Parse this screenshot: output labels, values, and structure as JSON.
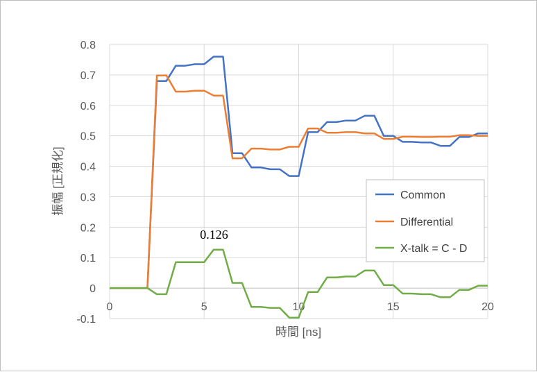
{
  "chart_data": {
    "type": "line",
    "xlabel": "時間 [ns]",
    "ylabel": "振幅 [正規化]",
    "xlim": [
      0,
      20
    ],
    "ylim": [
      -0.1,
      0.8
    ],
    "x_ticks": [
      "0",
      "5",
      "10",
      "15",
      "20"
    ],
    "y_ticks": [
      "-0.1",
      "0",
      "0.1",
      "0.2",
      "0.3",
      "0.4",
      "0.5",
      "0.6",
      "0.7",
      "0.8"
    ],
    "grid": true,
    "legend_position": "right",
    "annotations": [
      {
        "text": "0.126",
        "x": 6.0,
        "y": 0.126
      }
    ],
    "series": [
      {
        "name": "Common",
        "color": "#4472c4",
        "points": [
          [
            0,
            0
          ],
          [
            2,
            0
          ],
          [
            2.5,
            0.68
          ],
          [
            3,
            0.68
          ],
          [
            3.5,
            0.73
          ],
          [
            4,
            0.73
          ],
          [
            4.5,
            0.735
          ],
          [
            5,
            0.735
          ],
          [
            5.5,
            0.76
          ],
          [
            6,
            0.76
          ],
          [
            6.5,
            0.443
          ],
          [
            7,
            0.443
          ],
          [
            7.5,
            0.396
          ],
          [
            8,
            0.396
          ],
          [
            8.5,
            0.39
          ],
          [
            9,
            0.39
          ],
          [
            9.5,
            0.368
          ],
          [
            10,
            0.368
          ],
          [
            10.5,
            0.512
          ],
          [
            11,
            0.512
          ],
          [
            11.5,
            0.545
          ],
          [
            12,
            0.545
          ],
          [
            12.5,
            0.55
          ],
          [
            13,
            0.55
          ],
          [
            13.5,
            0.566
          ],
          [
            14,
            0.566
          ],
          [
            14.5,
            0.5
          ],
          [
            15,
            0.5
          ],
          [
            15.5,
            0.48
          ],
          [
            16,
            0.48
          ],
          [
            16.5,
            0.478
          ],
          [
            17,
            0.478
          ],
          [
            17.5,
            0.467
          ],
          [
            18,
            0.467
          ],
          [
            18.5,
            0.496
          ],
          [
            19,
            0.496
          ],
          [
            19.5,
            0.508
          ],
          [
            20,
            0.508
          ]
        ]
      },
      {
        "name": "Differential",
        "color": "#ed7d31",
        "points": [
          [
            0,
            0
          ],
          [
            2,
            0
          ],
          [
            2.5,
            0.698
          ],
          [
            3,
            0.698
          ],
          [
            3.5,
            0.645
          ],
          [
            4,
            0.645
          ],
          [
            4.5,
            0.648
          ],
          [
            5,
            0.648
          ],
          [
            5.5,
            0.632
          ],
          [
            6,
            0.632
          ],
          [
            6.5,
            0.426
          ],
          [
            7,
            0.426
          ],
          [
            7.5,
            0.458
          ],
          [
            8,
            0.458
          ],
          [
            8.5,
            0.455
          ],
          [
            9,
            0.455
          ],
          [
            9.5,
            0.464
          ],
          [
            10,
            0.464
          ],
          [
            10.5,
            0.524
          ],
          [
            11,
            0.524
          ],
          [
            11.5,
            0.51
          ],
          [
            12,
            0.51
          ],
          [
            12.5,
            0.512
          ],
          [
            13,
            0.512
          ],
          [
            13.5,
            0.508
          ],
          [
            14,
            0.508
          ],
          [
            14.5,
            0.49
          ],
          [
            15,
            0.49
          ],
          [
            15.5,
            0.497
          ],
          [
            16,
            0.497
          ],
          [
            16.5,
            0.496
          ],
          [
            17,
            0.496
          ],
          [
            17.5,
            0.497
          ],
          [
            18,
            0.497
          ],
          [
            18.5,
            0.502
          ],
          [
            19,
            0.502
          ],
          [
            19.5,
            0.5
          ],
          [
            20,
            0.5
          ]
        ]
      },
      {
        "name": "X-talk = C - D",
        "color": "#70ad47",
        "points": [
          [
            0,
            0
          ],
          [
            2,
            0
          ],
          [
            2.5,
            -0.02
          ],
          [
            3,
            -0.02
          ],
          [
            3.5,
            0.085
          ],
          [
            4,
            0.085
          ],
          [
            4.5,
            0.085
          ],
          [
            5,
            0.085
          ],
          [
            5.5,
            0.126
          ],
          [
            6,
            0.126
          ],
          [
            6.5,
            0.017
          ],
          [
            7,
            0.017
          ],
          [
            7.5,
            -0.062
          ],
          [
            8,
            -0.062
          ],
          [
            8.5,
            -0.065
          ],
          [
            9,
            -0.065
          ],
          [
            9.5,
            -0.097
          ],
          [
            10,
            -0.097
          ],
          [
            10.5,
            -0.013
          ],
          [
            11,
            -0.013
          ],
          [
            11.5,
            0.035
          ],
          [
            12,
            0.035
          ],
          [
            12.5,
            0.038
          ],
          [
            13,
            0.038
          ],
          [
            13.5,
            0.058
          ],
          [
            14,
            0.058
          ],
          [
            14.5,
            0.01
          ],
          [
            15,
            0.01
          ],
          [
            15.5,
            -0.018
          ],
          [
            16,
            -0.018
          ],
          [
            16.5,
            -0.02
          ],
          [
            17,
            -0.02
          ],
          [
            17.5,
            -0.03
          ],
          [
            18,
            -0.03
          ],
          [
            18.5,
            -0.006
          ],
          [
            19,
            -0.006
          ],
          [
            19.5,
            0.008
          ],
          [
            20,
            0.008
          ]
        ]
      }
    ]
  }
}
